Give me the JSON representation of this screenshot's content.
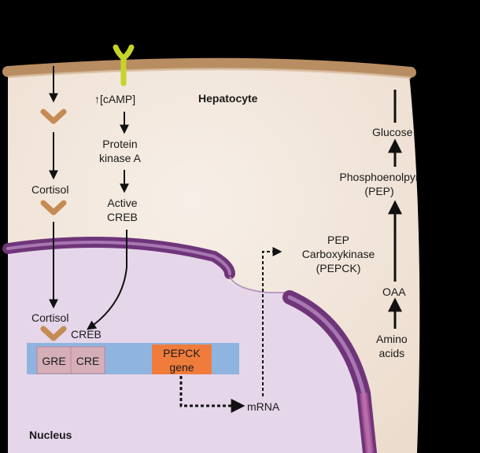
{
  "labels": {
    "hepatocyte": "Hepatocyte",
    "camp": "[cAMP]",
    "camp_arrow": "↑",
    "protein_kinase_a": "Protein\nkinase A",
    "active_creb": "Active\nCREB",
    "cortisol_1": "Cortisol",
    "cortisol_2": "Cortisol",
    "creb": "CREB",
    "gre": "GRE",
    "cre": "CRE",
    "pepck_gene": "PEPCK\ngene",
    "mrna": "mRNA",
    "pepck_enzyme": "PEP\nCarboxykinase\n(PEPCK)",
    "glucose": "Glucose",
    "phosphoenolpyruvate": "Phosphoenolpyr\n(PEP)",
    "oaa": "OAA",
    "amino_acids": "Amino\nacids",
    "nucleus": "Nucleus"
  },
  "colors": {
    "cytoplasm": "#f4eae1",
    "membrane": "#b88d62",
    "nucleoplasm": "#e6d6ea",
    "nuclear_envelope": "#7a3f86",
    "dna_strand": "#8fb4e0",
    "response_element": "#d6aeb8",
    "pepck_gene": "#f07c3c",
    "receptor": "#c6d42a",
    "cortisol_chevron": "#c68a55"
  }
}
